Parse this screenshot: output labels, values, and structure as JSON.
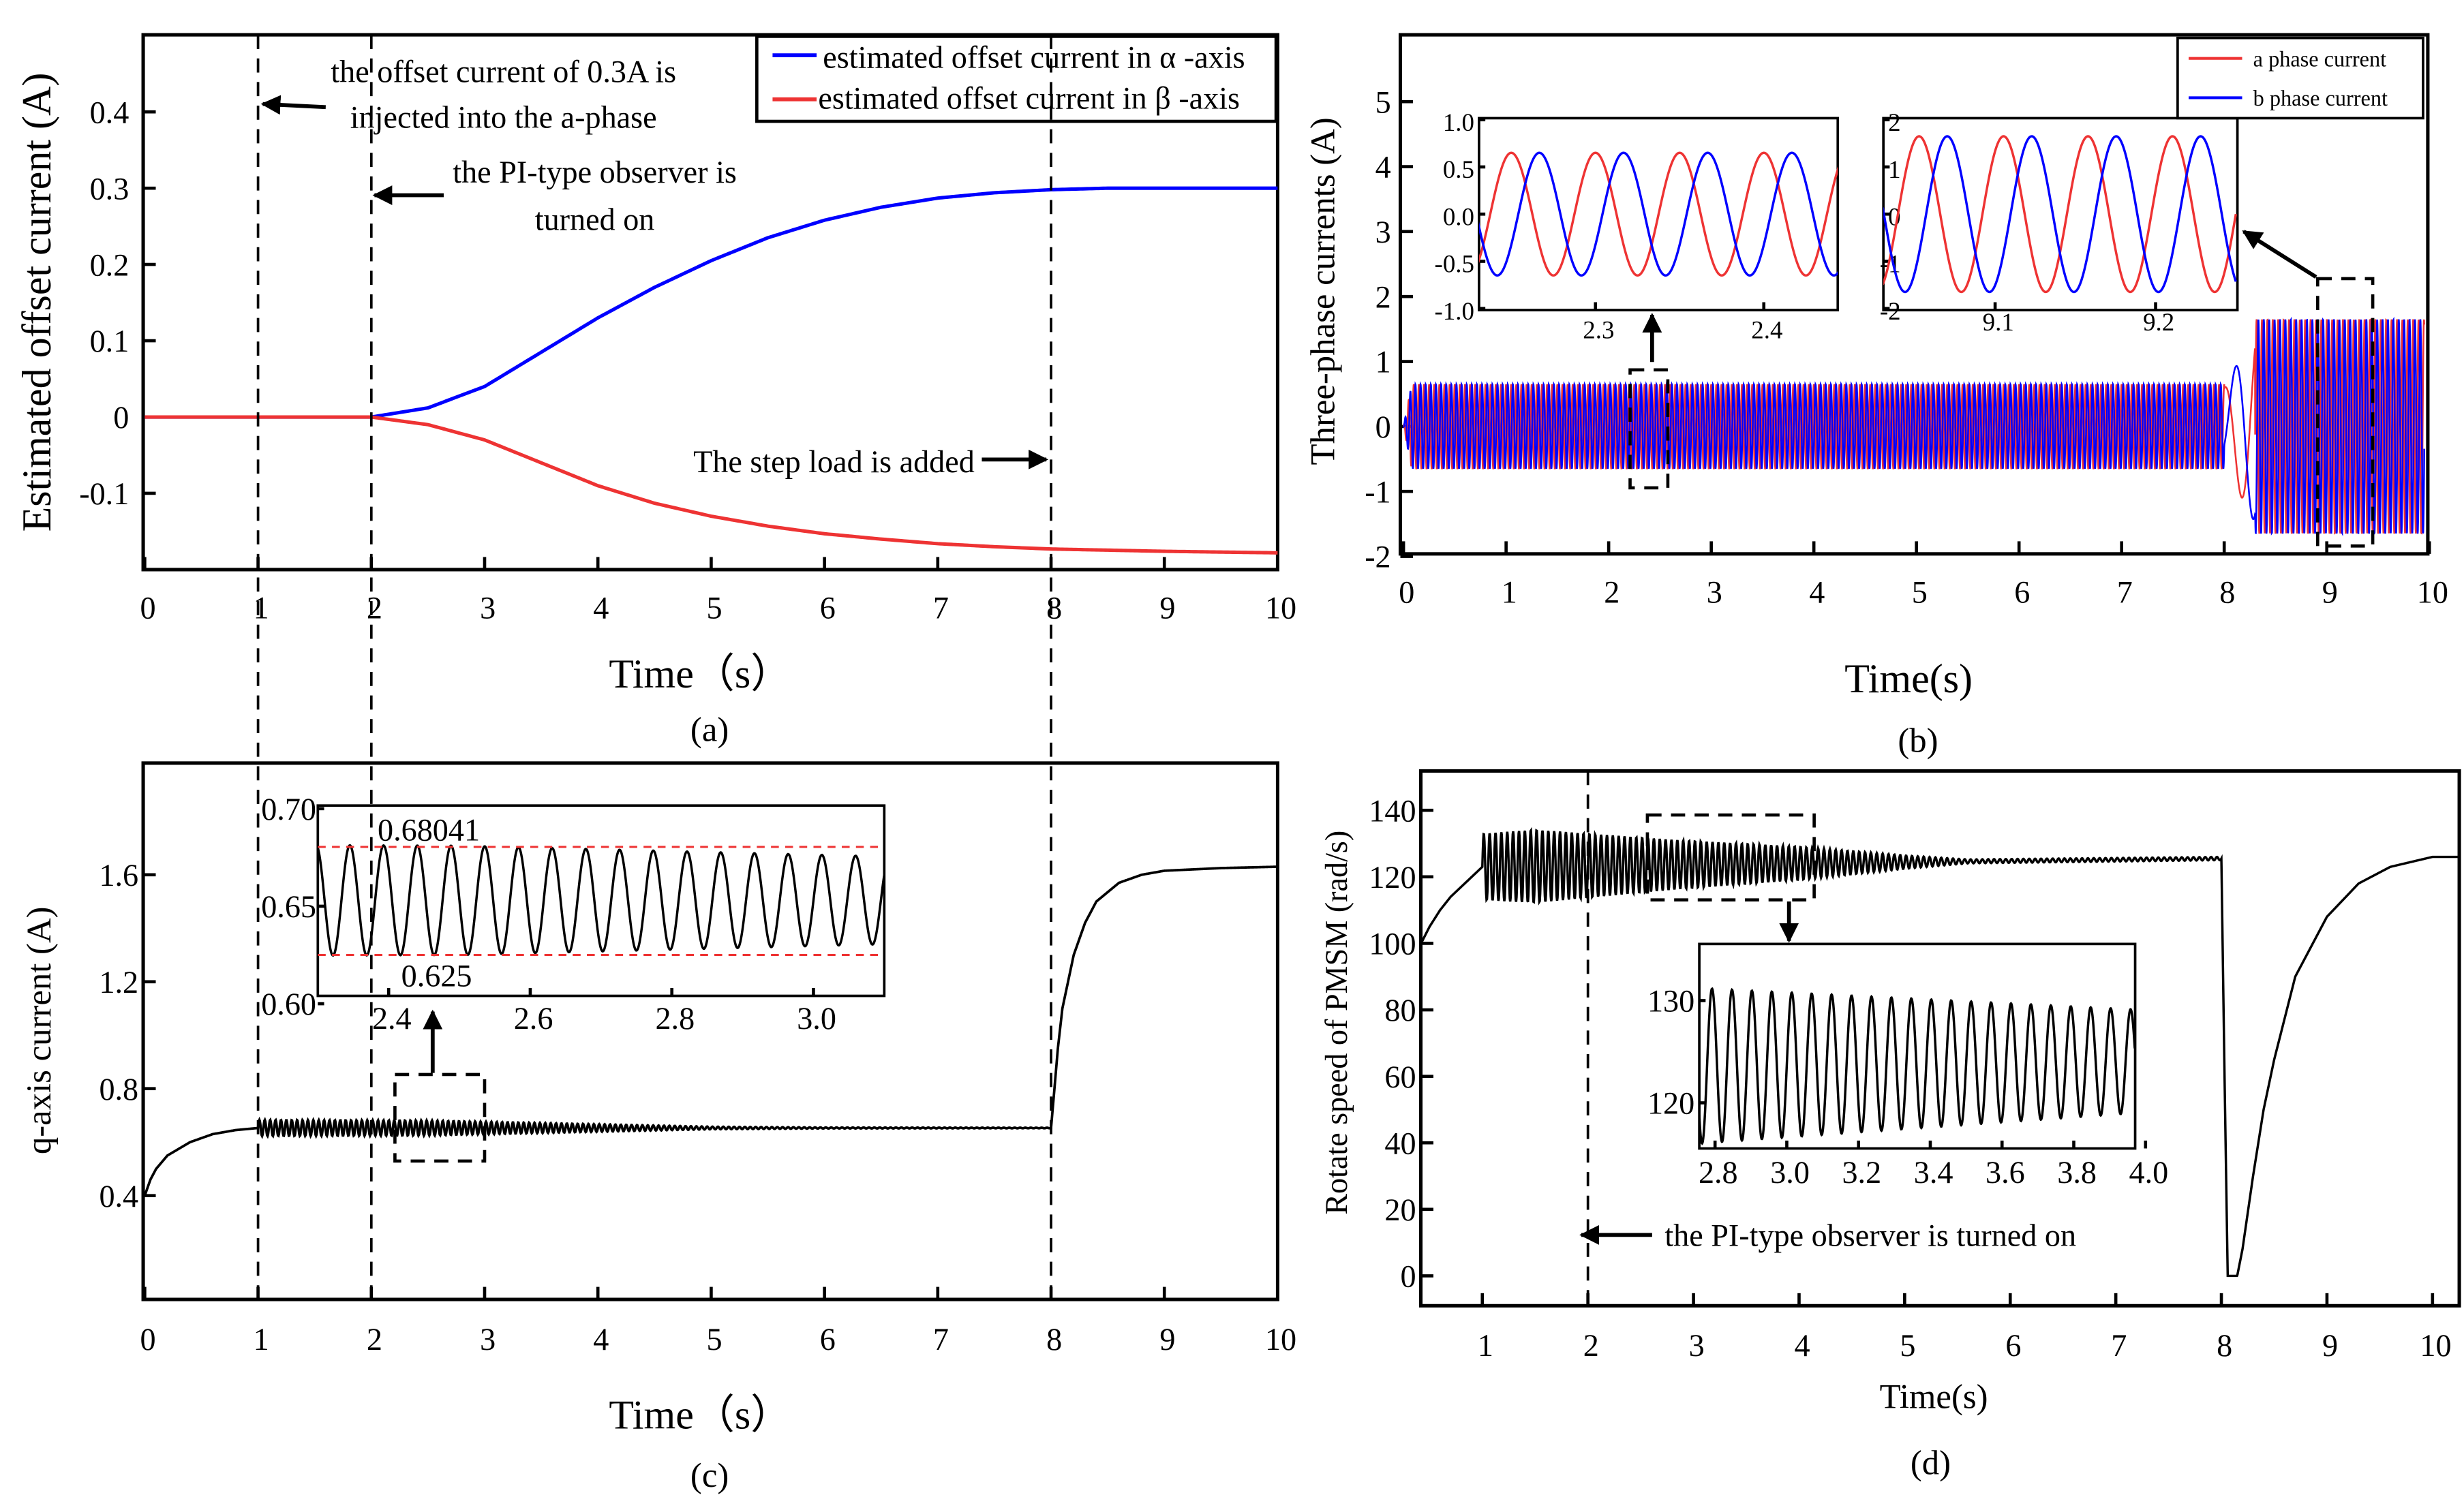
{
  "colors": {
    "blue": "#0000ff",
    "red": "#ee3333",
    "black": "#000000"
  },
  "chart_data": [
    {
      "id": "a",
      "type": "line",
      "caption": "(a)",
      "xlabel": "Time（s）",
      "ylabel": "Estimated offset current (A)",
      "xlim": [
        0,
        10
      ],
      "ylim": [
        -0.2,
        0.5
      ],
      "xticks": [
        "0",
        "1",
        "2",
        "3",
        "4",
        "5",
        "6",
        "7",
        "8",
        "9",
        "10"
      ],
      "yticks": [
        "0.4",
        "0.3",
        "0.2",
        "0.1",
        "0",
        "-0.1"
      ],
      "legend": {
        "placement": "top-right",
        "entries": [
          "estimated  offset current in  α -axis",
          "estimated  offset current in  β -axis"
        ]
      },
      "annotations": {
        "offset_line1": "the offset current of 0.3A is",
        "offset_line2": "injected into the a-phase",
        "pi_line1": "the PI-type observer is",
        "pi_line2": "turned on",
        "step": "The step load is added"
      },
      "event_times": [
        1,
        2,
        8
      ],
      "series": [
        {
          "name": "estimated  offset current in  α -axis",
          "color": "#0000ff",
          "x": [
            0,
            1,
            2,
            2.5,
            3,
            3.5,
            4,
            4.5,
            5,
            5.5,
            6,
            6.5,
            7,
            7.5,
            8,
            8.5,
            9,
            10
          ],
          "y": [
            0,
            0,
            0,
            0.012,
            0.04,
            0.085,
            0.13,
            0.17,
            0.205,
            0.235,
            0.258,
            0.275,
            0.287,
            0.294,
            0.298,
            0.3,
            0.3,
            0.3
          ]
        },
        {
          "name": "estimated  offset current in  β -axis",
          "color": "#ee3333",
          "x": [
            0,
            1,
            2,
            2.5,
            3,
            3.5,
            4,
            4.5,
            5,
            5.5,
            6,
            6.5,
            7,
            7.5,
            8,
            9,
            10
          ],
          "y": [
            0,
            0,
            0,
            -0.01,
            -0.03,
            -0.06,
            -0.09,
            -0.113,
            -0.13,
            -0.143,
            -0.153,
            -0.16,
            -0.166,
            -0.17,
            -0.173,
            -0.176,
            -0.178
          ]
        }
      ]
    },
    {
      "id": "b",
      "type": "line",
      "caption": "(b)",
      "xlabel": "Time(s)",
      "ylabel": "Three-phase currents (A)",
      "xlim": [
        0,
        10
      ],
      "ylim": [
        -2,
        6
      ],
      "xticks": [
        "0",
        "1",
        "2",
        "3",
        "4",
        "5",
        "6",
        "7",
        "8",
        "9",
        "10"
      ],
      "yticks": [
        "5",
        "4",
        "3",
        "2",
        "1",
        "0",
        "-1",
        "-2"
      ],
      "legend": {
        "placement": "top-right",
        "entries": [
          "a phase current",
          "b phase current"
        ]
      },
      "series": [
        {
          "name": "a phase current",
          "color": "#ee3333",
          "phase_deg": 0
        },
        {
          "name": "b phase current",
          "color": "#0000ff",
          "phase_deg": -120
        }
      ],
      "waveform": {
        "frequency_hz_before_load": 20,
        "amplitude_before_load": 0.65,
        "frequency_hz_after_load": 19,
        "amplitude_after_load": 1.65,
        "load_step_time": 8
      },
      "insets": [
        {
          "xlim": [
            2.23,
            2.445
          ],
          "ylim": [
            -1,
            1
          ],
          "xticks": [
            "2.3",
            "2.4"
          ],
          "yticks": [
            "1.0",
            "0.5",
            "0.0",
            "-0.5",
            "-1.0"
          ]
        },
        {
          "xlim": [
            9.03,
            9.25
          ],
          "ylim": [
            -2,
            2
          ],
          "xticks": [
            "9.1",
            "9.2"
          ],
          "yticks": [
            "2",
            "1",
            "0",
            "-1",
            "-2"
          ]
        }
      ]
    },
    {
      "id": "c",
      "type": "line",
      "caption": "(c)",
      "xlabel": "Time（s）",
      "ylabel": "q-axis current (A)",
      "xlim": [
        0,
        10
      ],
      "ylim": [
        0,
        2
      ],
      "xticks": [
        "0",
        "1",
        "2",
        "3",
        "4",
        "5",
        "6",
        "7",
        "8",
        "9",
        "10"
      ],
      "yticks": [
        "0.4",
        "0.8",
        "1.2",
        "1.6"
      ],
      "series": [
        {
          "name": "q-axis current",
          "color": "#000000",
          "x": [
            0,
            0.05,
            0.1,
            0.2,
            0.4,
            0.6,
            0.8,
            1,
            8,
            8.03,
            8.06,
            8.1,
            8.2,
            8.3,
            8.4,
            8.6,
            8.8,
            9,
            9.5,
            10
          ],
          "y": [
            0.4,
            0.46,
            0.5,
            0.55,
            0.6,
            0.63,
            0.645,
            0.653,
            0.653,
            0.8,
            0.95,
            1.1,
            1.3,
            1.42,
            1.5,
            1.57,
            1.6,
            1.615,
            1.625,
            1.63
          ]
        }
      ],
      "oscillation": {
        "frequency_hz": 21,
        "envelope_t": [
          1,
          2.5,
          5,
          6,
          8
        ],
        "envelope_amp": [
          0.03,
          0.028,
          0.005,
          0.002,
          0.001
        ]
      },
      "inset": {
        "xlim": [
          2.3,
          3.1
        ],
        "ylim": [
          0.6,
          0.7
        ],
        "xticks": [
          "2.4",
          "2.6",
          "2.8",
          "3.0"
        ],
        "yticks": [
          "0.70",
          "0.65",
          "0.60"
        ],
        "max_label": "0.68041",
        "min_label": "0.625",
        "max_value": 0.68041,
        "min_value": 0.625
      }
    },
    {
      "id": "d",
      "type": "line",
      "caption": "(d)",
      "xlabel": "Time(s)",
      "ylabel": "Rotate speed of PMSM (rad/s)",
      "xlim": [
        0.42,
        10.25
      ],
      "ylim": [
        -9,
        152
      ],
      "xticks": [
        "1",
        "2",
        "3",
        "4",
        "5",
        "6",
        "7",
        "8",
        "9",
        "10"
      ],
      "yticks": [
        "140",
        "120",
        "100",
        "80",
        "60",
        "40",
        "20",
        "0"
      ],
      "annotation": "the PI-type observer is turned on",
      "event_time": 2,
      "series": [
        {
          "name": "rotate speed",
          "color": "#000000",
          "x": [
            0.42,
            0.5,
            0.6,
            0.7,
            0.8,
            0.9,
            1,
            8,
            8.03,
            8.06,
            8.15,
            8.2,
            8.3,
            8.4,
            8.5,
            8.7,
            9,
            9.3,
            9.6,
            10,
            10.25
          ],
          "y": [
            100,
            105,
            110,
            114,
            117,
            120,
            123,
            125.5,
            60,
            0,
            0,
            8,
            30,
            50,
            65,
            90,
            108,
            118,
            123,
            126,
            126
          ]
        }
      ],
      "oscillation": {
        "frequency_hz": 18,
        "envelope_t": [
          1,
          1.5,
          2.8,
          4,
          5,
          5.6,
          8
        ],
        "envelope_amp": [
          10,
          11,
          7.5,
          5,
          2,
          0.6,
          0.5
        ]
      },
      "inset": {
        "xlim": [
          2.756,
          3.97
        ],
        "ylim": [
          116,
          136
        ],
        "xticks": [
          "2.8",
          "3.0",
          "3.2",
          "3.4",
          "3.6",
          "3.8",
          "4.0"
        ],
        "yticks": [
          "130",
          "120"
        ]
      }
    }
  ]
}
